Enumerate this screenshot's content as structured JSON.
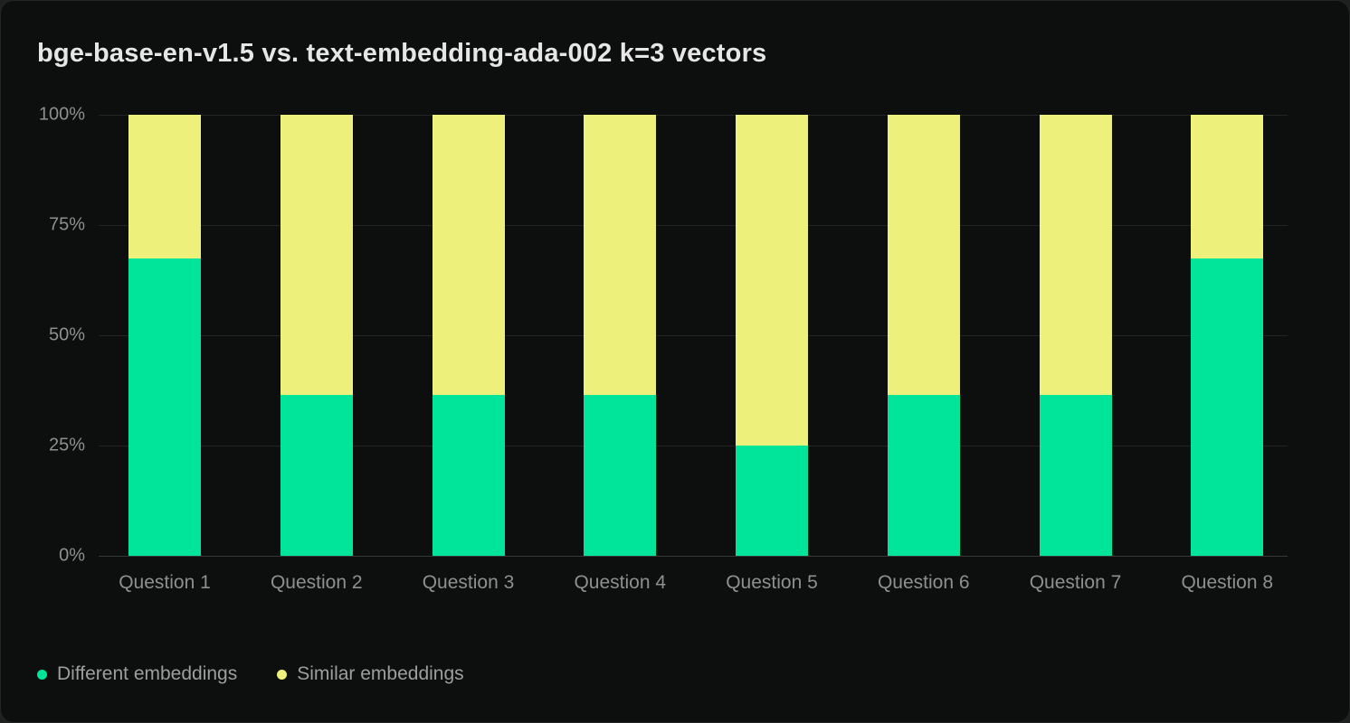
{
  "card": {
    "background": "#0d0e0e",
    "page_background": "#1f2121"
  },
  "chart_data": {
    "type": "bar",
    "stacked": true,
    "title": "bge-base-en-v1.5 vs. text-embedding-ada-002 k=3 vectors",
    "categories": [
      "Question 1",
      "Question 2",
      "Question 3",
      "Question 4",
      "Question 5",
      "Question 6",
      "Question 7",
      "Question 8"
    ],
    "series": [
      {
        "name": "Different embeddings",
        "color": "#00e599",
        "values": [
          67.5,
          36.5,
          36.5,
          36.5,
          25,
          36.5,
          36.5,
          67.5
        ]
      },
      {
        "name": "Similar embeddings",
        "color": "#eef07c",
        "values": [
          32.5,
          63.5,
          63.5,
          63.5,
          75,
          63.5,
          63.5,
          32.5
        ]
      }
    ],
    "xlabel": "",
    "ylabel": "",
    "ylim": [
      0,
      100
    ],
    "y_ticks": [
      {
        "label": "0%",
        "value": 0
      },
      {
        "label": "25%",
        "value": 25
      },
      {
        "label": "50%",
        "value": 50
      },
      {
        "label": "75%",
        "value": 75
      },
      {
        "label": "100%",
        "value": 100
      }
    ],
    "grid": true,
    "legend_position": "bottom-left"
  },
  "style": {
    "grid_color": "#232525",
    "axis_line_color": "#363838",
    "axis_text_color": "#8f8f8f",
    "title_color": "#e6e6e6",
    "legend_text_color": "#9e9e9e"
  }
}
